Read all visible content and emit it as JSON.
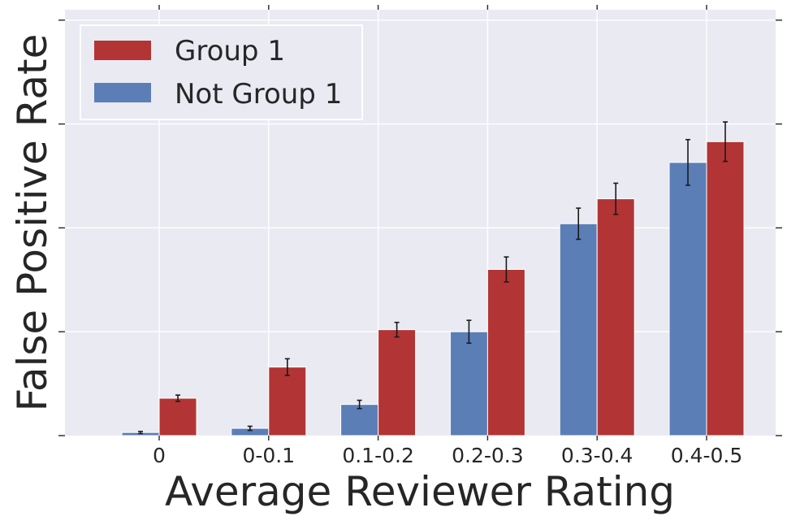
{
  "chart_data": {
    "type": "bar",
    "title": "",
    "xlabel": "Average Reviewer Rating",
    "ylabel": "False Positive Rate",
    "categories": [
      "0",
      "0-0.1",
      "0.1-0.2",
      "0.2-0.3",
      "0.3-0.4",
      "0.4-0.5"
    ],
    "series": [
      {
        "name": "Not Group 1",
        "color": "#5b7eb7",
        "values": [
          0.03,
          0.07,
          0.3,
          1.0,
          2.04,
          2.63
        ],
        "errors": [
          0.01,
          0.02,
          0.04,
          0.11,
          0.15,
          0.22
        ]
      },
      {
        "name": "Group 1",
        "color": "#b33434",
        "values": [
          0.36,
          0.66,
          1.02,
          1.6,
          2.28,
          2.83
        ],
        "errors": [
          0.03,
          0.08,
          0.07,
          0.12,
          0.15,
          0.19
        ]
      }
    ],
    "ylim": [
      0,
      4.1
    ],
    "yticks": [
      0,
      1,
      2,
      3,
      4
    ],
    "y_tick_labels_shown": false,
    "grid": true,
    "legend_position": "top-left",
    "legend_order": [
      "Group 1",
      "Not Group 1"
    ]
  }
}
